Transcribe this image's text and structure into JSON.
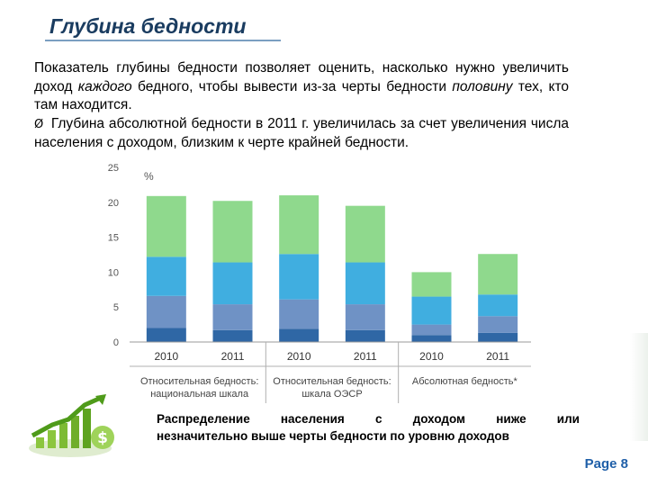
{
  "slide": {
    "title": "Глубина бедности",
    "paragraph1_a": "Показатель глубины бедности позволяет оценить, насколько нужно увеличить доход ",
    "paragraph1_em1": "каждого",
    "paragraph1_b": " бедного, чтобы вывести из-за черты бедности ",
    "paragraph1_em2": "половину",
    "paragraph1_c": " тех, кто там находится.",
    "bullet_symbol": "Ø",
    "paragraph2": "Глубина абсолютной бедности в 2011 г. увеличилась за счет увеличения числа населения с доходом, близким к черте крайней бедности.",
    "caption_line1_words": [
      "Распределение",
      "населения",
      "с",
      "доходом",
      "ниже",
      "или"
    ],
    "caption_line2": "незначительно выше черты бедности по уровню доходов",
    "page_label": "Page 8"
  },
  "colors": {
    "seg1": "#2f67a5",
    "seg2": "#6f92c5",
    "seg3": "#40aee0",
    "seg4": "#8fd98d",
    "title": "#1a3c60",
    "page": "#1f5fa8"
  },
  "icons": [
    "growth-chart-logo-icon",
    "dollar-icon"
  ],
  "chart_data": {
    "type": "bar",
    "stacked": true,
    "ylabel": "%",
    "ylim": [
      0,
      25
    ],
    "yticks": [
      0,
      5,
      10,
      15,
      20,
      25
    ],
    "categories": [
      "2010",
      "2011",
      "2010",
      "2011",
      "2010",
      "2011"
    ],
    "groups": [
      {
        "label": "Относительная бедность: национальная шкала",
        "span": [
          0,
          1
        ]
      },
      {
        "label": "Относительная бедность: шкала ОЭСР",
        "span": [
          2,
          3
        ]
      },
      {
        "label": "Абсолютная бедность*",
        "span": [
          4,
          5
        ]
      }
    ],
    "series": [
      {
        "values": [
          2.0,
          1.7,
          1.9,
          1.7,
          1.0,
          1.3
        ]
      },
      {
        "values": [
          4.6,
          3.7,
          4.2,
          3.7,
          1.5,
          2.4
        ]
      },
      {
        "values": [
          5.6,
          6.0,
          6.5,
          6.0,
          4.0,
          3.1
        ]
      },
      {
        "values": [
          8.7,
          8.8,
          8.4,
          8.1,
          3.5,
          5.8
        ]
      }
    ],
    "grid": false,
    "legend": "none"
  }
}
